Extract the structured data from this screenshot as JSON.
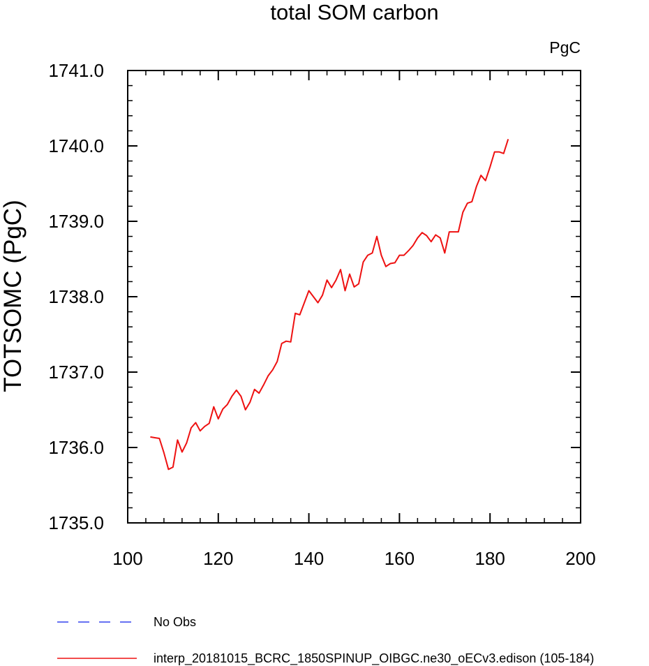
{
  "chart_data": {
    "type": "line",
    "title": "total SOM carbon",
    "units": "PgC",
    "xlabel": "",
    "ylabel": "TOTSOMC  (PgC)",
    "xlim": [
      100,
      200
    ],
    "ylim": [
      1735.0,
      1741.0
    ],
    "x_ticks": [
      "100",
      "120",
      "140",
      "160",
      "180",
      "200"
    ],
    "y_ticks": [
      "1735.0",
      "1736.0",
      "1737.0",
      "1738.0",
      "1739.0",
      "1740.0",
      "1741.0"
    ],
    "grid": false,
    "legend_position": "bottom",
    "series": [
      {
        "name": "No Obs",
        "color": "#3344ee",
        "style": "dashed",
        "x": [],
        "y": []
      },
      {
        "name": "interp_20181015_BCRC_1850SPINUP_OIBGC.ne30_oECv3.edison (105-184)",
        "color": "#ee1111",
        "style": "solid",
        "x": [
          105,
          106,
          107,
          108,
          109,
          110,
          111,
          112,
          113,
          114,
          115,
          116,
          117,
          118,
          119,
          120,
          121,
          122,
          123,
          124,
          125,
          126,
          127,
          128,
          129,
          130,
          131,
          132,
          133,
          134,
          135,
          136,
          137,
          138,
          139,
          140,
          141,
          142,
          143,
          144,
          145,
          146,
          147,
          148,
          149,
          150,
          151,
          152,
          153,
          154,
          155,
          156,
          157,
          158,
          159,
          160,
          161,
          162,
          163,
          164,
          165,
          166,
          167,
          168,
          169,
          170,
          171,
          172,
          173,
          174,
          175,
          176,
          177,
          178,
          179,
          180,
          181,
          182,
          183,
          184
        ],
        "y": [
          1736.14,
          1736.13,
          1736.12,
          1735.93,
          1735.71,
          1735.74,
          1736.1,
          1735.94,
          1736.06,
          1736.26,
          1736.33,
          1736.22,
          1736.28,
          1736.32,
          1736.54,
          1736.38,
          1736.51,
          1736.57,
          1736.68,
          1736.76,
          1736.68,
          1736.5,
          1736.6,
          1736.77,
          1736.72,
          1736.83,
          1736.95,
          1737.03,
          1737.14,
          1737.38,
          1737.41,
          1737.4,
          1737.78,
          1737.76,
          1737.92,
          1738.08,
          1738.0,
          1737.92,
          1738.02,
          1738.22,
          1738.12,
          1738.22,
          1738.36,
          1738.08,
          1738.3,
          1738.13,
          1738.17,
          1738.46,
          1738.55,
          1738.58,
          1738.8,
          1738.55,
          1738.4,
          1738.44,
          1738.45,
          1738.55,
          1738.55,
          1738.61,
          1738.68,
          1738.78,
          1738.85,
          1738.81,
          1738.73,
          1738.82,
          1738.78,
          1738.58,
          1738.86,
          1738.86,
          1738.86,
          1739.12,
          1739.24,
          1739.26,
          1739.46,
          1739.61,
          1739.54,
          1739.72,
          1739.92,
          1739.92,
          1739.9,
          1740.09
        ]
      }
    ]
  }
}
